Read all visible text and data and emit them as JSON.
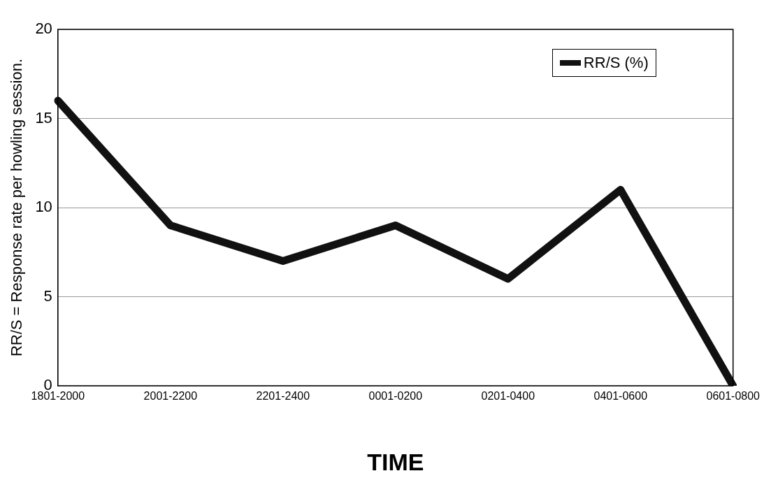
{
  "chart_data": {
    "type": "line",
    "xlabel": "TIME",
    "ylabel": "RR/S = Response rate per howling session.",
    "categories": [
      "1801-2000",
      "2001-2200",
      "2201-2400",
      "0001-0200",
      "0201-0400",
      "0401-0600",
      "0601-0800"
    ],
    "series": [
      {
        "name": "RR/S (%)",
        "color": "#111111",
        "values": [
          16,
          9,
          7,
          9,
          6,
          11,
          0
        ]
      }
    ],
    "ylim": [
      0,
      20
    ],
    "yticks": [
      0,
      5,
      10,
      15,
      20
    ],
    "grid": "y",
    "legend": "top right",
    "marker": "none",
    "line_style": "solid"
  }
}
